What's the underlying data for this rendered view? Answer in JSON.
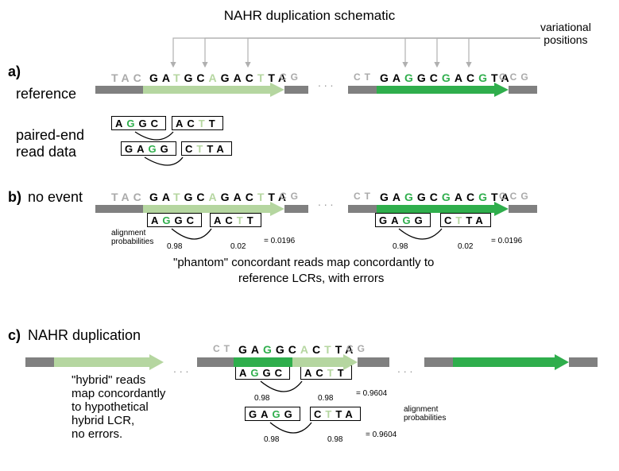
{
  "title": "NAHR duplication schematic",
  "variational_label_line1": "variational",
  "variational_label_line2": "positions",
  "panels": {
    "a": "a)",
    "b": "b)",
    "c": "c)"
  },
  "labels": {
    "reference": "reference",
    "paired_end_line1": "paired-end",
    "paired_end_line2": "read data",
    "no_event": "no event",
    "nahr_dup": "NAHR  duplication",
    "align_prob": "alignment",
    "align_prob2": "probabilities",
    "phantom_caption": "\"phantom\" concordant reads map concordantly to",
    "phantom_caption2": "reference LCRs, with errors",
    "hybrid_caption_l1": "\"hybrid\" reads",
    "hybrid_caption_l2": "map concordantly",
    "hybrid_caption_l3": "to hypothetical",
    "hybrid_caption_l4": "hybrid LCR,",
    "hybrid_caption_l5": "no errors."
  },
  "colors": {
    "black": "#000000",
    "gray_text": "#aaaaaa",
    "flank_bar": "#808080",
    "light_green": "#b5d6a0",
    "dark_green": "#2fae4c",
    "bright_green": "#1fb24c",
    "arrow_line": "#b0b0b0"
  },
  "sequences": {
    "left_flank": [
      {
        "c": "T",
        "col": "gray_text"
      },
      {
        "c": "A",
        "col": "gray_text"
      },
      {
        "c": "C",
        "col": "gray_text"
      }
    ],
    "left_lcr": [
      {
        "c": "G",
        "col": "black"
      },
      {
        "c": "A",
        "col": "black"
      },
      {
        "c": "T",
        "col": "light_green"
      },
      {
        "c": "G",
        "col": "black"
      },
      {
        "c": "C",
        "col": "black"
      },
      {
        "c": "A",
        "col": "light_green"
      },
      {
        "c": "G",
        "col": "black"
      },
      {
        "c": "A",
        "col": "black"
      },
      {
        "c": "C",
        "col": "black"
      },
      {
        "c": "T",
        "col": "light_green"
      },
      {
        "c": "T",
        "col": "black"
      },
      {
        "c": "A",
        "col": "black"
      }
    ],
    "left_post": [
      {
        "c": "C",
        "col": "gray_text"
      },
      {
        "c": "G",
        "col": "gray_text"
      }
    ],
    "right_pre": [
      {
        "c": "C",
        "col": "gray_text"
      },
      {
        "c": "T",
        "col": "gray_text"
      }
    ],
    "right_lcr": [
      {
        "c": "G",
        "col": "black"
      },
      {
        "c": "A",
        "col": "black"
      },
      {
        "c": "G",
        "col": "dark_green"
      },
      {
        "c": "G",
        "col": "black"
      },
      {
        "c": "C",
        "col": "black"
      },
      {
        "c": "G",
        "col": "dark_green"
      },
      {
        "c": "A",
        "col": "black"
      },
      {
        "c": "C",
        "col": "black"
      },
      {
        "c": "G",
        "col": "dark_green"
      },
      {
        "c": "T",
        "col": "black"
      },
      {
        "c": "A",
        "col": "black"
      }
    ],
    "right_post": [
      {
        "c": "C",
        "col": "gray_text"
      },
      {
        "c": "C",
        "col": "gray_text"
      },
      {
        "c": "G",
        "col": "gray_text"
      }
    ],
    "hybrid_pre": [
      {
        "c": "C",
        "col": "gray_text"
      },
      {
        "c": "T",
        "col": "gray_text"
      }
    ],
    "hybrid_lcr": [
      {
        "c": "G",
        "col": "black"
      },
      {
        "c": "A",
        "col": "black"
      },
      {
        "c": "G",
        "col": "dark_green"
      },
      {
        "c": "G",
        "col": "black"
      },
      {
        "c": "C",
        "col": "black"
      },
      {
        "c": "A",
        "col": "light_green"
      },
      {
        "c": "C",
        "col": "black"
      },
      {
        "c": "T",
        "col": "light_green"
      },
      {
        "c": "T",
        "col": "black"
      },
      {
        "c": "A",
        "col": "black"
      }
    ],
    "hybrid_post": [
      {
        "c": "C",
        "col": "gray_text"
      },
      {
        "c": "G",
        "col": "gray_text"
      }
    ]
  },
  "reads": {
    "r1": [
      {
        "c": "A",
        "col": "black"
      },
      {
        "c": "G",
        "col": "dark_green"
      },
      {
        "c": "G",
        "col": "black"
      },
      {
        "c": "C",
        "col": "black"
      }
    ],
    "r2": [
      {
        "c": "A",
        "col": "black"
      },
      {
        "c": "C",
        "col": "black"
      },
      {
        "c": "T",
        "col": "light_green"
      },
      {
        "c": "T",
        "col": "black"
      }
    ],
    "r3": [
      {
        "c": "G",
        "col": "black"
      },
      {
        "c": "A",
        "col": "black"
      },
      {
        "c": "G",
        "col": "dark_green"
      },
      {
        "c": "G",
        "col": "black"
      }
    ],
    "r4": [
      {
        "c": "C",
        "col": "black"
      },
      {
        "c": "T",
        "col": "light_green"
      },
      {
        "c": "T",
        "col": "black"
      },
      {
        "c": "A",
        "col": "black"
      }
    ]
  },
  "probs": {
    "p098": "0.98",
    "p002": "0.02",
    "eq_low": "= 0.0196",
    "eq_high": "= 0.9604"
  },
  "ellipsis": ". . ."
}
